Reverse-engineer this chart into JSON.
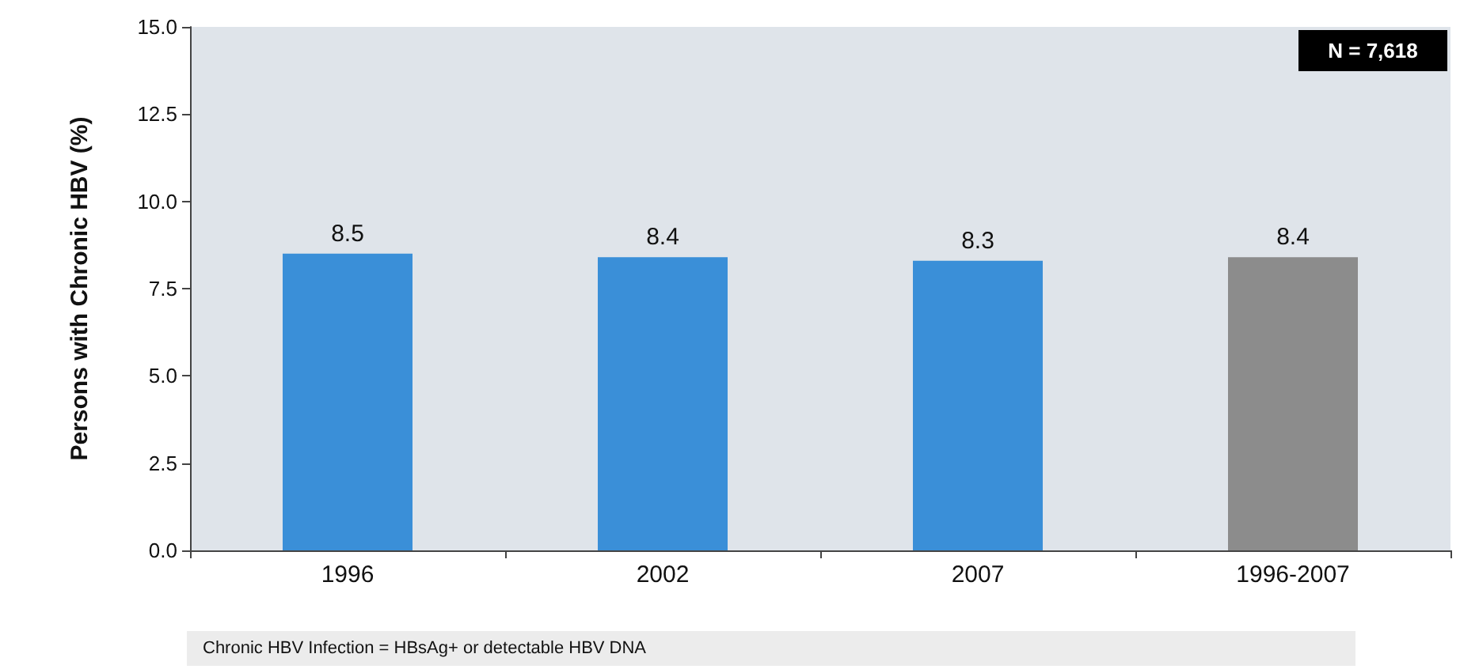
{
  "chart_data": {
    "type": "bar",
    "ylabel": "Persons with Chronic HBV (%)",
    "categories": [
      "1996",
      "2002",
      "2007",
      "1996-2007"
    ],
    "values": [
      8.5,
      8.4,
      8.3,
      8.4
    ],
    "colors": [
      "#3a8fd8",
      "#3a8fd8",
      "#3a8fd8",
      "#8c8c8c"
    ],
    "ylim": [
      0,
      15
    ],
    "yticks": [
      {
        "value": 0,
        "label": "0.0"
      },
      {
        "value": 2.5,
        "label": "2.5"
      },
      {
        "value": 5,
        "label": "5.0"
      },
      {
        "value": 7.5,
        "label": "7.5"
      },
      {
        "value": 10,
        "label": "10.0"
      },
      {
        "value": 12.5,
        "label": "12.5"
      },
      {
        "value": 15,
        "label": "15.0"
      }
    ],
    "data_labels": true,
    "grid": false,
    "annotations": [
      "N = 7,618",
      "Chronic HBV Infection = HBsAg+ or detectable HBV DNA"
    ]
  }
}
